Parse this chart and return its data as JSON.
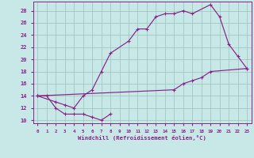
{
  "xlabel": "Windchill (Refroidissement éolien,°C)",
  "xlim": [
    -0.5,
    23.5
  ],
  "ylim": [
    9.5,
    29.5
  ],
  "yticks": [
    10,
    12,
    14,
    16,
    18,
    20,
    22,
    24,
    26,
    28
  ],
  "xticks": [
    0,
    1,
    2,
    3,
    4,
    5,
    6,
    7,
    8,
    9,
    10,
    11,
    12,
    13,
    14,
    15,
    16,
    17,
    18,
    19,
    20,
    21,
    22,
    23
  ],
  "bg_color": "#c8e8e8",
  "line_color": "#882288",
  "grid_color": "#a0c8c0",
  "line1_x": [
    0,
    1,
    2,
    3,
    4,
    5,
    6,
    7,
    8
  ],
  "line1_y": [
    14,
    14,
    12,
    11,
    11,
    11,
    10.5,
    10,
    11
  ],
  "line2_x": [
    0,
    2,
    3,
    4,
    5,
    6,
    7,
    8,
    10,
    11,
    12,
    13,
    14,
    15,
    16,
    17,
    19,
    20,
    21,
    22,
    23
  ],
  "line2_y": [
    14,
    13,
    12.5,
    12,
    14,
    15,
    18,
    21,
    23,
    25,
    25,
    27,
    27.5,
    27.5,
    28,
    27.5,
    29,
    27,
    22.5,
    20.5,
    18.5
  ],
  "line3_x": [
    0,
    15,
    16,
    17,
    18,
    19,
    23
  ],
  "line3_y": [
    14,
    15,
    16,
    16.5,
    17,
    18,
    18.5
  ]
}
